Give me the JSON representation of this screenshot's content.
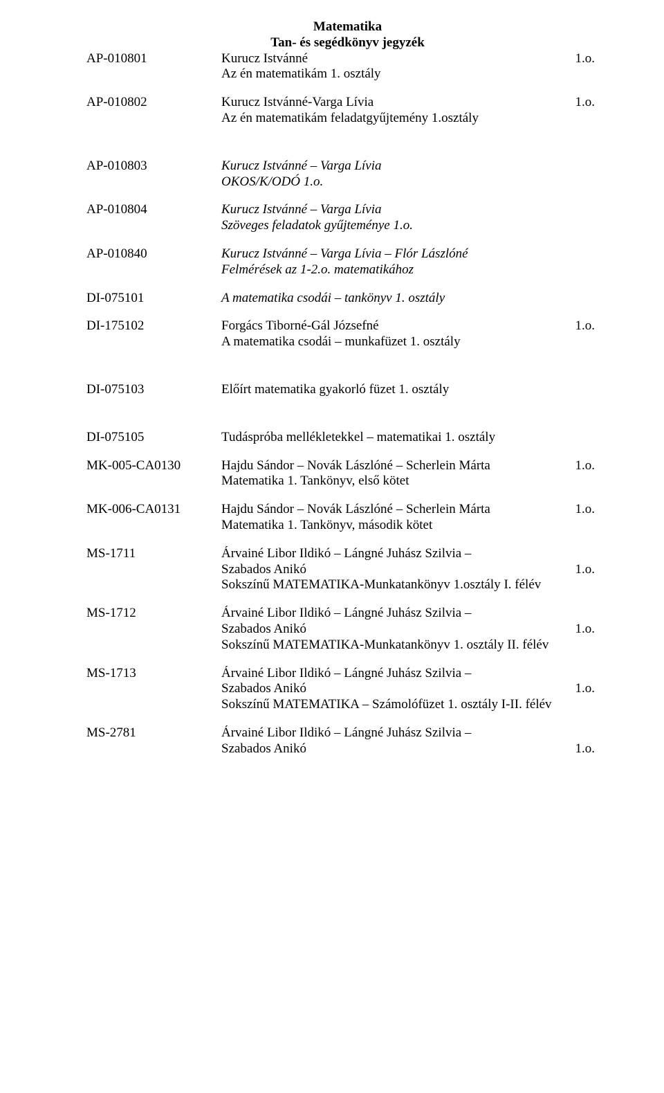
{
  "title": {
    "line1": "Matematika",
    "line2": "Tan- és segédkönyv jegyzék"
  },
  "entries": [
    {
      "code": "AP-010801",
      "author": "Kurucz Istvánné",
      "grade": "1.o.",
      "sub": "Az én matematikám 1. osztály",
      "italic": false,
      "gapAfter": "md"
    },
    {
      "code": "AP-010802",
      "author": "Kurucz Istvánné-Varga Lívia",
      "grade": "1.o.",
      "sub": "Az én matematikám feladatgyűjtemény 1.osztály",
      "italic": false,
      "gapAfter": "lg"
    },
    {
      "code": "AP-010803",
      "author": "Kurucz Istvánné – Varga Lívia",
      "grade": "",
      "sub": "OKOS/K/ODÓ 1.o.",
      "italic": true,
      "gapAfter": "md"
    },
    {
      "code": "AP-010804",
      "author": "Kurucz Istvánné – Varga Lívia",
      "grade": "",
      "sub": "Szöveges feladatok gyűjteménye 1.o.",
      "italic": true,
      "gapAfter": "md"
    },
    {
      "code": "AP-010840",
      "author": "Kurucz Istvánné – Varga Lívia – Flór Lászlóné",
      "grade": "",
      "sub": "Felmérések az 1-2.o. matematikához",
      "italic": true,
      "gapAfter": "md"
    },
    {
      "code": "DI-075101",
      "author": "A matematika csodái – tankönyv 1. osztály",
      "grade": "",
      "sub": "",
      "italic": true,
      "gapAfter": "md"
    },
    {
      "code": "DI-175102",
      "author": "Forgács Tiborné-Gál Józsefné",
      "grade": "1.o.",
      "sub": "A matematika csodái – munkafüzet 1. osztály",
      "italic": false,
      "gapAfter": "lg"
    },
    {
      "code": "DI-075103",
      "author": "Előírt matematika gyakorló füzet 1. osztály",
      "grade": "",
      "sub": "",
      "italic": false,
      "gapAfter": "lg"
    },
    {
      "code": "DI-075105",
      "author": "Tudáspróba mellékletekkel – matematikai 1. osztály",
      "grade": "",
      "sub": "",
      "italic": false,
      "gapAfter": "md"
    },
    {
      "code": "MK-005-CA0130",
      "author": "Hajdu Sándor – Novák Lászlóné – Scherlein Márta",
      "grade": "1.o.",
      "sub": "Matematika 1. Tankönyv, első kötet",
      "italic": false,
      "gapAfter": "md"
    },
    {
      "code": "MK-006-CA0131",
      "author": "Hajdu Sándor – Novák Lászlóné – Scherlein Márta",
      "grade": "1.o.",
      "sub": "Matematika 1. Tankönyv, második kötet",
      "italic": false,
      "gapAfter": "md"
    },
    {
      "code": "MS-1711",
      "author": "Árvainé Libor Ildikó – Lángné Juhász Szilvia – Szabados Anikó",
      "grade": "1.o.",
      "sub": "Sokszínű MATEMATIKA-Munkatankönyv 1.osztály I. félév",
      "italic": false,
      "gapAfter": "md",
      "twoLineAuthor": true,
      "authorLine1": "Árvainé Libor Ildikó – Lángné Juhász Szilvia –",
      "authorLine2": "Szabados Anikó"
    },
    {
      "code": "MS-1712",
      "author": "Árvainé Libor Ildikó – Lángné Juhász Szilvia – Szabados Anikó",
      "grade": "1.o.",
      "sub": "Sokszínű MATEMATIKA-Munkatankönyv 1. osztály II. félév",
      "italic": false,
      "gapAfter": "md",
      "twoLineAuthor": true,
      "authorLine1": "Árvainé Libor Ildikó – Lángné Juhász Szilvia –",
      "authorLine2": "Szabados Anikó"
    },
    {
      "code": "MS-1713",
      "author": "Árvainé Libor Ildikó – Lángné Juhász Szilvia – Szabados Anikó",
      "grade": "1.o.",
      "sub": "Sokszínű MATEMATIKA – Számolófüzet 1. osztály I-II. félév",
      "italic": false,
      "gapAfter": "md",
      "twoLineAuthor": true,
      "authorLine1": "Árvainé Libor Ildikó – Lángné Juhász Szilvia –",
      "authorLine2": "Szabados Anikó"
    },
    {
      "code": "MS-2781",
      "author": "Árvainé Libor Ildikó – Lángné Juhász Szilvia – Szabados Anikó",
      "grade": "1.o.",
      "sub": "",
      "italic": false,
      "gapAfter": "",
      "twoLineAuthor": true,
      "authorLine1": "Árvainé Libor Ildikó – Lángné Juhász Szilvia –",
      "authorLine2": "Szabados Anikó"
    }
  ]
}
